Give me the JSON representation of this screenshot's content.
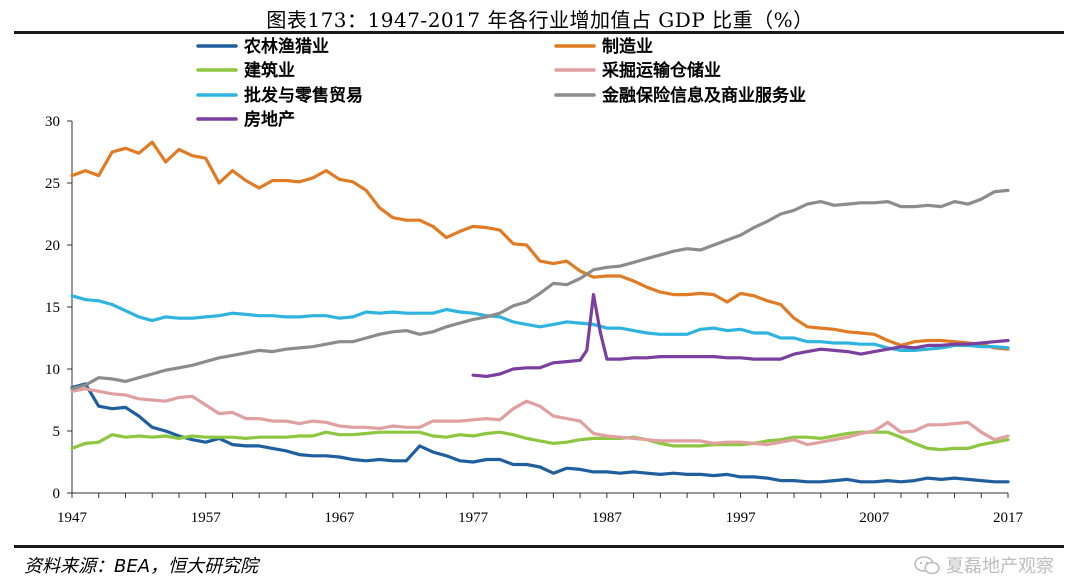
{
  "title": "图表173：1947-2017 年各行业增加值占 GDP 比重（%）",
  "source": "资料来源：BEA，恒大研究院",
  "watermark": "夏磊地产观察",
  "chart_data": {
    "type": "line",
    "x_ticks": [
      1947,
      1957,
      1967,
      1977,
      1987,
      1997,
      2007,
      2017
    ],
    "y_ticks": [
      0,
      5,
      10,
      15,
      20,
      25,
      30
    ],
    "xlim": [
      1947,
      2017
    ],
    "ylim": [
      0,
      30
    ],
    "grid": false,
    "legend_position": "top",
    "series": [
      {
        "name": "农林渔猎业",
        "color": "#1f5f9e",
        "x": [
          1947,
          1948,
          1949,
          1950,
          1951,
          1952,
          1953,
          1954,
          1955,
          1956,
          1957,
          1958,
          1959,
          1960,
          1961,
          1962,
          1963,
          1964,
          1965,
          1966,
          1967,
          1968,
          1969,
          1970,
          1971,
          1972,
          1973,
          1974,
          1975,
          1976,
          1977,
          1978,
          1979,
          1980,
          1981,
          1982,
          1983,
          1984,
          1985,
          1986,
          1987,
          1988,
          1989,
          1990,
          1991,
          1992,
          1993,
          1994,
          1995,
          1996,
          1997,
          1998,
          1999,
          2000,
          2001,
          2002,
          2003,
          2004,
          2005,
          2006,
          2007,
          2008,
          2009,
          2010,
          2011,
          2012,
          2013,
          2014,
          2015,
          2016,
          2017
        ],
        "y": [
          8.5,
          8.8,
          7.0,
          6.8,
          6.9,
          6.2,
          5.3,
          5.0,
          4.6,
          4.3,
          4.1,
          4.4,
          3.9,
          3.8,
          3.8,
          3.6,
          3.4,
          3.1,
          3.0,
          3.0,
          2.9,
          2.7,
          2.6,
          2.7,
          2.6,
          2.6,
          3.8,
          3.3,
          3.0,
          2.6,
          2.5,
          2.7,
          2.7,
          2.3,
          2.3,
          2.1,
          1.6,
          2.0,
          1.9,
          1.7,
          1.7,
          1.6,
          1.7,
          1.6,
          1.5,
          1.6,
          1.5,
          1.5,
          1.4,
          1.5,
          1.3,
          1.3,
          1.2,
          1.0,
          1.0,
          0.9,
          0.9,
          1.0,
          1.1,
          0.9,
          0.9,
          1.0,
          0.9,
          1.0,
          1.2,
          1.1,
          1.2,
          1.1,
          1.0,
          0.9,
          0.9
        ]
      },
      {
        "name": "制造业",
        "color": "#e07b24",
        "x": [
          1947,
          1948,
          1949,
          1950,
          1951,
          1952,
          1953,
          1954,
          1955,
          1956,
          1957,
          1958,
          1959,
          1960,
          1961,
          1962,
          1963,
          1964,
          1965,
          1966,
          1967,
          1968,
          1969,
          1970,
          1971,
          1972,
          1973,
          1974,
          1975,
          1976,
          1977,
          1978,
          1979,
          1980,
          1981,
          1982,
          1983,
          1984,
          1985,
          1986,
          1987,
          1988,
          1989,
          1990,
          1991,
          1992,
          1993,
          1994,
          1995,
          1996,
          1997,
          1998,
          1999,
          2000,
          2001,
          2002,
          2003,
          2004,
          2005,
          2006,
          2007,
          2008,
          2009,
          2010,
          2011,
          2012,
          2013,
          2014,
          2015,
          2016,
          2017
        ],
        "y": [
          25.6,
          26.0,
          25.6,
          27.5,
          27.8,
          27.4,
          28.3,
          26.7,
          27.7,
          27.2,
          27.0,
          25.0,
          26.0,
          25.2,
          24.6,
          25.2,
          25.2,
          25.1,
          25.4,
          26.0,
          25.3,
          25.1,
          24.4,
          23.0,
          22.2,
          22.0,
          22.0,
          21.5,
          20.6,
          21.1,
          21.5,
          21.4,
          21.2,
          20.1,
          20.0,
          18.7,
          18.5,
          18.7,
          17.9,
          17.4,
          17.5,
          17.5,
          17.1,
          16.6,
          16.2,
          16.0,
          16.0,
          16.1,
          16.0,
          15.4,
          16.1,
          15.9,
          15.5,
          15.2,
          14.1,
          13.4,
          13.3,
          13.2,
          13.0,
          12.9,
          12.8,
          12.3,
          11.9,
          12.2,
          12.3,
          12.3,
          12.2,
          12.1,
          12.0,
          11.7,
          11.6
        ]
      },
      {
        "name": "建筑业",
        "color": "#8dc63f",
        "x": [
          1947,
          1948,
          1949,
          1950,
          1951,
          1952,
          1953,
          1954,
          1955,
          1956,
          1957,
          1958,
          1959,
          1960,
          1961,
          1962,
          1963,
          1964,
          1965,
          1966,
          1967,
          1968,
          1969,
          1970,
          1971,
          1972,
          1973,
          1974,
          1975,
          1976,
          1977,
          1978,
          1979,
          1980,
          1981,
          1982,
          1983,
          1984,
          1985,
          1986,
          1987,
          1988,
          1989,
          1990,
          1991,
          1992,
          1993,
          1994,
          1995,
          1996,
          1997,
          1998,
          1999,
          2000,
          2001,
          2002,
          2003,
          2004,
          2005,
          2006,
          2007,
          2008,
          2009,
          2010,
          2011,
          2012,
          2013,
          2014,
          2015,
          2016,
          2017
        ],
        "y": [
          3.6,
          4.0,
          4.1,
          4.7,
          4.5,
          4.6,
          4.5,
          4.6,
          4.4,
          4.6,
          4.5,
          4.5,
          4.5,
          4.4,
          4.5,
          4.5,
          4.5,
          4.6,
          4.6,
          4.9,
          4.7,
          4.7,
          4.8,
          4.9,
          4.9,
          4.9,
          4.9,
          4.6,
          4.5,
          4.7,
          4.6,
          4.8,
          4.9,
          4.7,
          4.4,
          4.2,
          4.0,
          4.1,
          4.3,
          4.4,
          4.4,
          4.4,
          4.5,
          4.3,
          4.0,
          3.8,
          3.8,
          3.8,
          3.9,
          3.9,
          3.9,
          4.0,
          4.2,
          4.3,
          4.5,
          4.5,
          4.4,
          4.6,
          4.8,
          4.9,
          4.9,
          4.9,
          4.5,
          4.0,
          3.6,
          3.5,
          3.6,
          3.6,
          3.9,
          4.1,
          4.3
        ]
      },
      {
        "name": "采掘运输仓储业",
        "color": "#e0a0a0",
        "x": [
          1947,
          1948,
          1949,
          1950,
          1951,
          1952,
          1953,
          1954,
          1955,
          1956,
          1957,
          1958,
          1959,
          1960,
          1961,
          1962,
          1963,
          1964,
          1965,
          1966,
          1967,
          1968,
          1969,
          1970,
          1971,
          1972,
          1973,
          1974,
          1975,
          1976,
          1977,
          1978,
          1979,
          1980,
          1981,
          1982,
          1983,
          1984,
          1985,
          1986,
          1987,
          1988,
          1989,
          1990,
          1991,
          1992,
          1993,
          1994,
          1995,
          1996,
          1997,
          1998,
          1999,
          2000,
          2001,
          2002,
          2003,
          2004,
          2005,
          2006,
          2007,
          2008,
          2009,
          2010,
          2011,
          2012,
          2013,
          2014,
          2015,
          2016,
          2017
        ],
        "y": [
          8.2,
          8.4,
          8.2,
          8.0,
          7.9,
          7.6,
          7.5,
          7.4,
          7.7,
          7.8,
          7.1,
          6.4,
          6.5,
          6.0,
          6.0,
          5.8,
          5.8,
          5.6,
          5.8,
          5.7,
          5.4,
          5.3,
          5.3,
          5.2,
          5.4,
          5.3,
          5.3,
          5.8,
          5.8,
          5.8,
          5.9,
          6.0,
          5.9,
          6.8,
          7.4,
          7.0,
          6.2,
          6.0,
          5.8,
          4.8,
          4.6,
          4.5,
          4.4,
          4.3,
          4.2,
          4.2,
          4.2,
          4.2,
          4.0,
          4.1,
          4.1,
          4.0,
          3.9,
          4.1,
          4.3,
          3.9,
          4.1,
          4.3,
          4.5,
          4.8,
          5.0,
          5.7,
          4.9,
          5.0,
          5.5,
          5.5,
          5.6,
          5.7,
          4.9,
          4.3,
          4.6
        ]
      },
      {
        "name": "批发与零售贸易",
        "color": "#2fb4e0",
        "x": [
          1947,
          1948,
          1949,
          1950,
          1951,
          1952,
          1953,
          1954,
          1955,
          1956,
          1957,
          1958,
          1959,
          1960,
          1961,
          1962,
          1963,
          1964,
          1965,
          1966,
          1967,
          1968,
          1969,
          1970,
          1971,
          1972,
          1973,
          1974,
          1975,
          1976,
          1977,
          1978,
          1979,
          1980,
          1981,
          1982,
          1983,
          1984,
          1985,
          1986,
          1987,
          1988,
          1989,
          1990,
          1991,
          1992,
          1993,
          1994,
          1995,
          1996,
          1997,
          1998,
          1999,
          2000,
          2001,
          2002,
          2003,
          2004,
          2005,
          2006,
          2007,
          2008,
          2009,
          2010,
          2011,
          2012,
          2013,
          2014,
          2015,
          2016,
          2017
        ],
        "y": [
          15.9,
          15.6,
          15.5,
          15.2,
          14.7,
          14.2,
          13.9,
          14.2,
          14.1,
          14.1,
          14.2,
          14.3,
          14.5,
          14.4,
          14.3,
          14.3,
          14.2,
          14.2,
          14.3,
          14.3,
          14.1,
          14.2,
          14.6,
          14.5,
          14.6,
          14.5,
          14.5,
          14.5,
          14.8,
          14.6,
          14.5,
          14.3,
          14.2,
          13.8,
          13.6,
          13.4,
          13.6,
          13.8,
          13.7,
          13.6,
          13.3,
          13.3,
          13.1,
          12.9,
          12.8,
          12.8,
          12.8,
          13.2,
          13.3,
          13.1,
          13.2,
          12.9,
          12.9,
          12.5,
          12.5,
          12.2,
          12.2,
          12.1,
          12.1,
          12.0,
          12.0,
          11.7,
          11.5,
          11.5,
          11.6,
          11.7,
          11.9,
          11.9,
          11.8,
          11.8,
          11.7
        ]
      },
      {
        "name": "金融保险信息及商业服务业",
        "color": "#8c8c8c",
        "x": [
          1947,
          1948,
          1949,
          1950,
          1951,
          1952,
          1953,
          1954,
          1955,
          1956,
          1957,
          1958,
          1959,
          1960,
          1961,
          1962,
          1963,
          1964,
          1965,
          1966,
          1967,
          1968,
          1969,
          1970,
          1971,
          1972,
          1973,
          1974,
          1975,
          1976,
          1977,
          1978,
          1979,
          1980,
          1981,
          1982,
          1983,
          1984,
          1985,
          1986,
          1987,
          1988,
          1989,
          1990,
          1991,
          1992,
          1993,
          1994,
          1995,
          1996,
          1997,
          1998,
          1999,
          2000,
          2001,
          2002,
          2003,
          2004,
          2005,
          2006,
          2007,
          2008,
          2009,
          2010,
          2011,
          2012,
          2013,
          2014,
          2015,
          2016,
          2017
        ],
        "y": [
          8.4,
          8.7,
          9.3,
          9.2,
          9.0,
          9.3,
          9.6,
          9.9,
          10.1,
          10.3,
          10.6,
          10.9,
          11.1,
          11.3,
          11.5,
          11.4,
          11.6,
          11.7,
          11.8,
          12.0,
          12.2,
          12.2,
          12.5,
          12.8,
          13.0,
          13.1,
          12.8,
          13.0,
          13.4,
          13.7,
          14.0,
          14.2,
          14.5,
          15.1,
          15.4,
          16.1,
          16.9,
          16.8,
          17.3,
          18.0,
          18.2,
          18.3,
          18.6,
          18.9,
          19.2,
          19.5,
          19.7,
          19.6,
          20.0,
          20.4,
          20.8,
          21.4,
          21.9,
          22.5,
          22.8,
          23.3,
          23.5,
          23.2,
          23.3,
          23.4,
          23.4,
          23.5,
          23.1,
          23.1,
          23.2,
          23.1,
          23.5,
          23.3,
          23.7,
          24.3,
          24.4
        ]
      },
      {
        "name": "房地产",
        "color": "#7b3fa0",
        "x": [
          1977,
          1978,
          1979,
          1980,
          1981,
          1982,
          1983,
          1984,
          1985,
          1985.5,
          1986,
          1986.5,
          1987,
          1988,
          1989,
          1990,
          1991,
          1992,
          1993,
          1994,
          1995,
          1996,
          1997,
          1998,
          1999,
          2000,
          2001,
          2002,
          2003,
          2004,
          2005,
          2006,
          2007,
          2008,
          2009,
          2010,
          2011,
          2012,
          2013,
          2014,
          2015,
          2016,
          2017
        ],
        "y": [
          9.5,
          9.4,
          9.6,
          10.0,
          10.1,
          10.1,
          10.5,
          10.6,
          10.7,
          11.5,
          16.0,
          13.0,
          10.8,
          10.8,
          10.9,
          10.9,
          11.0,
          11.0,
          11.0,
          11.0,
          11.0,
          10.9,
          10.9,
          10.8,
          10.8,
          10.8,
          11.2,
          11.4,
          11.6,
          11.5,
          11.4,
          11.2,
          11.4,
          11.6,
          11.8,
          11.7,
          11.9,
          11.9,
          12.0,
          12.0,
          12.1,
          12.2,
          12.3
        ]
      }
    ]
  }
}
